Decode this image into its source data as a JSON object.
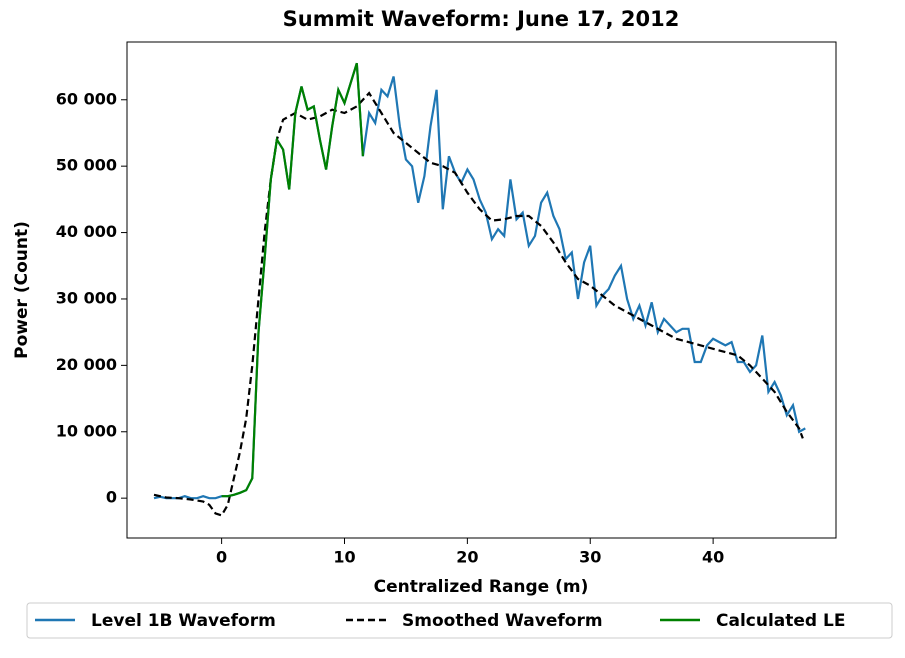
{
  "chart_data": {
    "type": "line",
    "title": "Summit Waveform: June 17, 2012",
    "x_label": "Centralized Range (m)",
    "y_label": "Power (Count)",
    "xlim": [
      -7.7,
      50.0
    ],
    "ylim": [
      -6000,
      68700
    ],
    "xticks": [
      0,
      10,
      20,
      30,
      40
    ],
    "yticks": [
      0,
      {
        "value": 10000,
        "label": "10 000"
      },
      {
        "value": 20000,
        "label": "20 000"
      },
      {
        "value": 30000,
        "label": "30 000"
      },
      {
        "value": 40000,
        "label": "40 000"
      },
      {
        "value": 50000,
        "label": "50 000"
      },
      {
        "value": 60000,
        "label": "60 000"
      }
    ],
    "legend": "bottom",
    "series": [
      {
        "name": "Level 1B Waveform",
        "color": "#1f77b4",
        "style": "solid",
        "x": [
          -5.5,
          -5,
          -4.5,
          -4,
          -3.5,
          -3,
          -2.5,
          -2,
          -1.5,
          -1,
          -0.5,
          0,
          0.5,
          1,
          1.5,
          2,
          2.5,
          3,
          3.5,
          4,
          4.5,
          5,
          5.5,
          6,
          6.5,
          7,
          7.5,
          8,
          8.5,
          9,
          9.5,
          10,
          10.5,
          11,
          11.5,
          12,
          12.5,
          13,
          13.5,
          14,
          14.5,
          15,
          15.5,
          16,
          16.5,
          17,
          17.5,
          18,
          18.5,
          19,
          19.5,
          20,
          20.5,
          21,
          21.5,
          22,
          22.5,
          23,
          23.5,
          24,
          24.5,
          25,
          25.5,
          26,
          26.5,
          27,
          27.5,
          28,
          28.5,
          29,
          29.5,
          30,
          30.5,
          31,
          31.5,
          32,
          32.5,
          33,
          33.5,
          34,
          34.5,
          35,
          35.5,
          36,
          36.5,
          37,
          37.5,
          38,
          38.5,
          39,
          39.5,
          40,
          40.5,
          41,
          41.5,
          42,
          42.5,
          43,
          43.5,
          44,
          44.5,
          45,
          45.5,
          46,
          46.5,
          47,
          47.5
        ],
        "values": [
          0,
          200,
          0,
          0,
          0,
          300,
          0,
          0,
          300,
          0,
          0,
          300,
          300,
          500,
          800,
          1200,
          3000,
          25000,
          36000,
          48000,
          54000,
          52500,
          46500,
          58000,
          62000,
          58500,
          59000,
          54000,
          49500,
          56000,
          61500,
          59500,
          62500,
          65500,
          51500,
          58000,
          56500,
          61500,
          60500,
          63500,
          56000,
          51000,
          50000,
          44500,
          48500,
          56000,
          61500,
          43500,
          51500,
          49000,
          47500,
          49500,
          48000,
          45000,
          43000,
          39000,
          40500,
          39500,
          48000,
          42000,
          43000,
          38000,
          39500,
          44500,
          46000,
          42500,
          40500,
          36000,
          37000,
          30000,
          35500,
          38000,
          29000,
          30500,
          31500,
          33500,
          35000,
          30000,
          27000,
          29000,
          26000,
          29500,
          25000,
          27000,
          26000,
          25000,
          25500,
          25500,
          20500,
          20500,
          23000,
          24000,
          23500,
          23000,
          23500,
          20500,
          20500,
          19000,
          20000,
          24500,
          16000,
          17500,
          15500,
          12500,
          14000,
          10000,
          10500
        ]
      },
      {
        "name": "Smoothed Waveform",
        "color": "#000000",
        "style": "dashed",
        "x": [
          -5.5,
          -4.5,
          -3.5,
          -2.5,
          -1.5,
          -1,
          -0.5,
          0,
          0.5,
          1,
          1.5,
          2,
          2.5,
          3,
          3.5,
          4,
          4.5,
          5,
          6,
          7,
          8,
          9,
          10,
          11,
          12,
          13,
          14,
          15,
          16,
          17,
          18,
          19,
          20,
          21,
          22,
          23,
          24,
          25,
          26,
          27,
          28,
          29,
          30,
          31,
          32,
          33,
          34,
          35,
          36,
          37,
          38,
          39,
          40,
          41,
          42,
          43,
          44,
          45,
          46,
          47,
          47.3
        ],
        "values": [
          500,
          100,
          0,
          -200,
          -500,
          -1000,
          -2300,
          -2600,
          -1000,
          3000,
          7000,
          12000,
          20000,
          30000,
          40000,
          48000,
          54000,
          57000,
          58000,
          57000,
          57500,
          58500,
          58000,
          59000,
          61000,
          58000,
          55000,
          53500,
          52000,
          50500,
          50000,
          49000,
          46000,
          43500,
          41800,
          42000,
          42500,
          42500,
          41000,
          38500,
          35500,
          33000,
          32000,
          30500,
          29000,
          28000,
          27000,
          26000,
          25000,
          24000,
          23500,
          23000,
          22500,
          22000,
          21500,
          20000,
          18000,
          16000,
          13000,
          10500,
          9000
        ]
      },
      {
        "name": "Calculated LE",
        "color": "#008000",
        "style": "solid",
        "x": [
          0,
          0.5,
          1,
          1.5,
          2,
          2.5,
          3,
          3.5,
          4,
          4.5,
          5,
          5.5,
          6,
          6.5,
          7,
          7.5,
          8,
          8.5,
          9,
          9.5,
          10,
          10.5,
          11,
          11.5
        ],
        "values": [
          300,
          300,
          500,
          800,
          1200,
          3000,
          25000,
          36000,
          48000,
          54000,
          52500,
          46500,
          58000,
          62000,
          58500,
          59000,
          54000,
          49500,
          56000,
          61500,
          59500,
          62500,
          65500,
          51500
        ]
      }
    ]
  }
}
